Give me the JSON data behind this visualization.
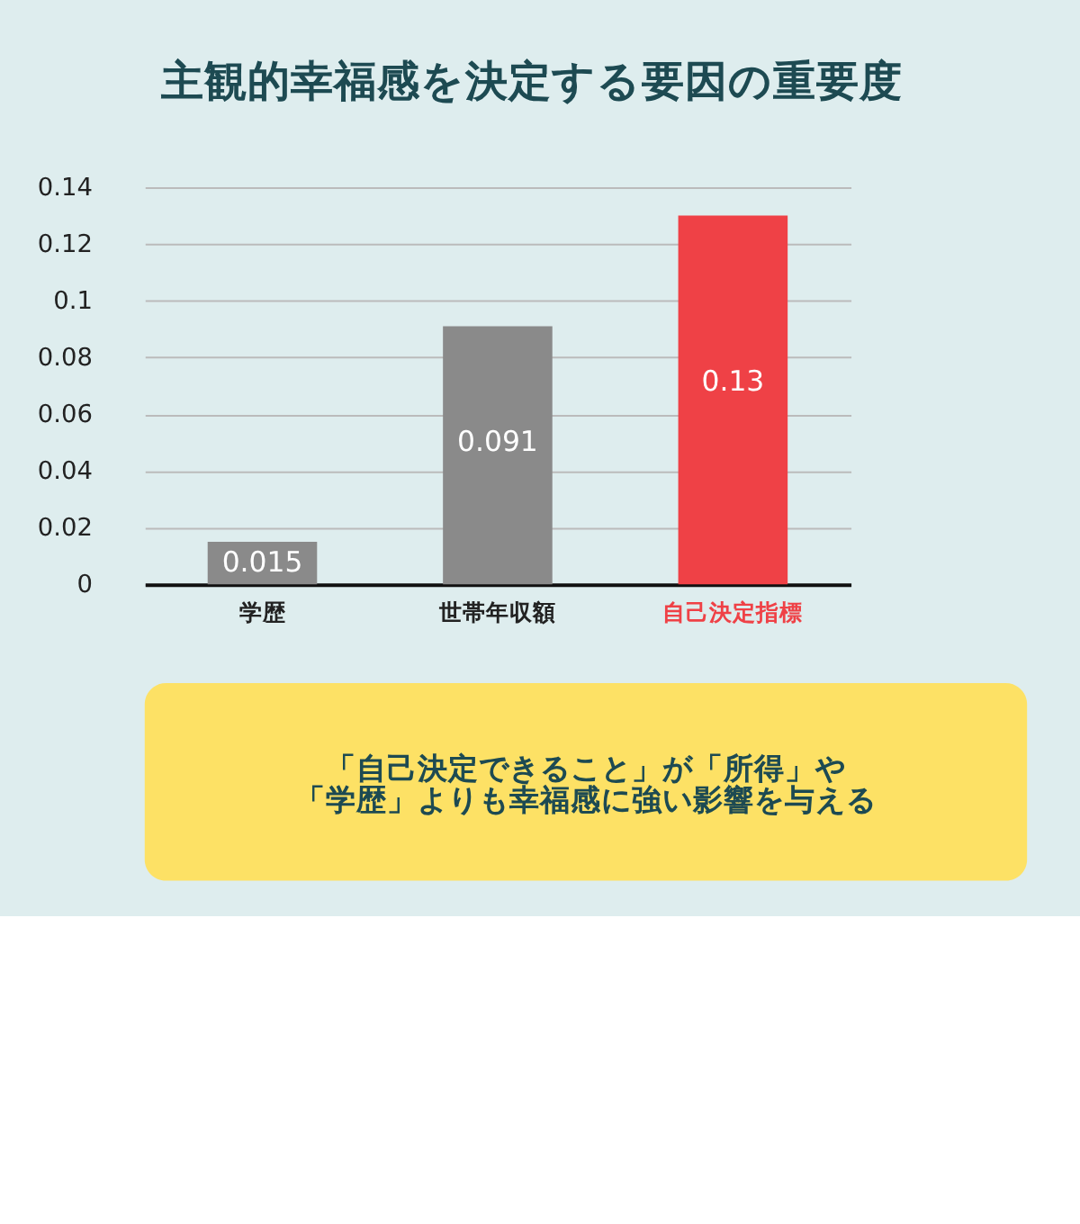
{
  "chart_data": {
    "type": "bar",
    "title": "主観的幸福感を決定する要因の重要度",
    "categories": [
      "学歴",
      "世帯年収額",
      "自己決定指標"
    ],
    "values": [
      0.015,
      0.091,
      0.13
    ],
    "colors": [
      "#8a8a8a",
      "#8a8a8a",
      "#ef4146"
    ],
    "ylim": [
      0,
      0.14
    ],
    "yticks": [
      0,
      0.02,
      0.04,
      0.06,
      0.08,
      0.1,
      0.12,
      0.14
    ],
    "grid": "y",
    "data_labels": true,
    "annotations": [
      "「自己決定できること」が「所得」や",
      "「学歴」よりも幸福感に強い影響を与える"
    ]
  }
}
